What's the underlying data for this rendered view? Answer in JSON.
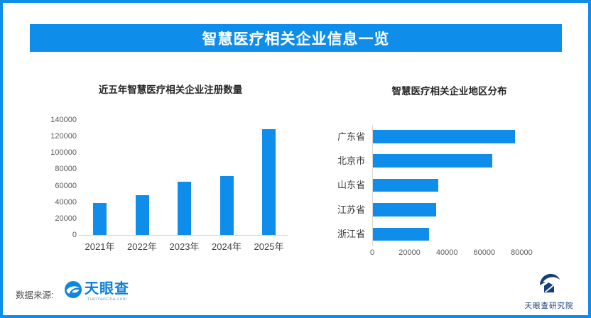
{
  "banner": {
    "title": "智慧医疗相关企业信息一览"
  },
  "footer": {
    "source_label": "数据来源:",
    "source_logo_text": "天眼查",
    "source_logo_sub": "TianYanCha.com",
    "research_logo_text": "天眼查研究院"
  },
  "icons": {
    "source_logo": "tianyancha-eye-icon",
    "research_logo": "tianyancha-research-icon"
  },
  "colors": {
    "accent_blue": "#0f8deb",
    "bar_blue": "#0f8deb",
    "axis_line": "#d6d6d6",
    "tick_text": "#595959",
    "title_text": "#262626",
    "source_text": "#4d4d4d",
    "tianyancha_blue": "#0c80d9",
    "research_navy": "#163e77"
  },
  "chart_data": [
    {
      "type": "bar",
      "orientation": "vertical",
      "title": "近五年智慧医疗相关企业注册数量",
      "categories": [
        "2021年",
        "2022年",
        "2023年",
        "2024年",
        "2025年"
      ],
      "values": [
        39000,
        48000,
        64500,
        71500,
        128500
      ],
      "ylabel": "",
      "xlabel": "",
      "ylim": [
        0,
        140000
      ],
      "yticks": [
        0,
        20000,
        40000,
        60000,
        80000,
        100000,
        120000,
        140000
      ],
      "grid": false,
      "legend": false
    },
    {
      "type": "bar",
      "orientation": "horizontal",
      "title": "智慧医疗相关企业地区分布",
      "categories": [
        "广东省",
        "北京市",
        "山东省",
        "江苏省",
        "浙江省"
      ],
      "values": [
        76000,
        64000,
        35000,
        34000,
        30000
      ],
      "ylabel": "",
      "xlabel": "",
      "xlim": [
        0,
        88000
      ],
      "xticks": [
        0,
        20000,
        40000,
        60000,
        80000
      ],
      "grid": false,
      "legend": false
    }
  ]
}
